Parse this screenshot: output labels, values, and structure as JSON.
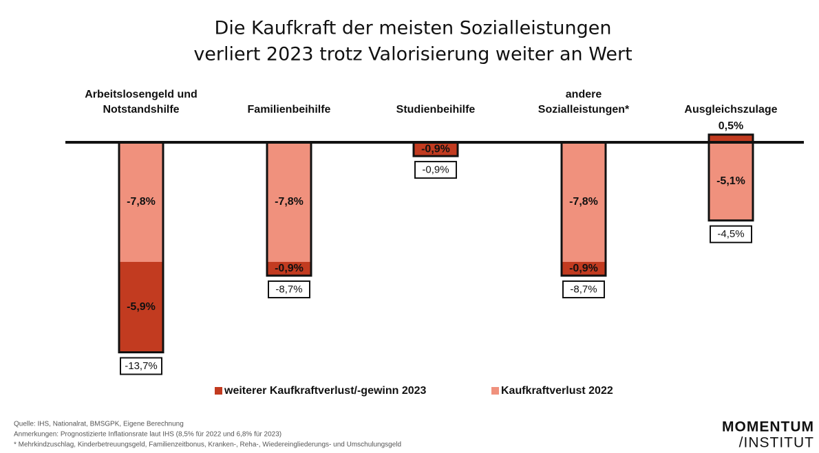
{
  "chart_data": {
    "type": "bar",
    "title": [
      "Die Kaufkraft der meisten Sozialleistungen",
      "verliert 2023 trotz Valorisierung weiter an Wert"
    ],
    "categories": [
      [
        "Arbeitslosengeld und",
        "Notstandshilfe"
      ],
      [
        "Familienbeihilfe"
      ],
      [
        "Studienbeihilfe"
      ],
      [
        "andere",
        "Sozialleistungen*"
      ],
      [
        "Ausgleichszulage"
      ]
    ],
    "stacked": true,
    "series": [
      {
        "name": "weiterer Kaufkraftverlust/-gewinn 2023",
        "color": "#c23b20",
        "values": [
          -5.9,
          -0.9,
          -0.9,
          -0.9,
          0.5
        ],
        "value_labels": [
          "-5,9%",
          "-0,9%",
          "-0,9%",
          "-0,9%",
          "0,5%"
        ]
      },
      {
        "name": "Kaufkraftverlust 2022",
        "color": "#f0917d",
        "values": [
          -7.8,
          -7.8,
          null,
          -7.8,
          -5.1
        ],
        "value_labels": [
          "-7,8%",
          "-7,8%",
          null,
          "-7,8%",
          "-5,1%"
        ]
      }
    ],
    "totals": [
      -13.7,
      -8.7,
      -0.9,
      -8.7,
      -4.5
    ],
    "total_labels": [
      "-13,7%",
      "-8,7%",
      "-0,9%",
      "-8,7%",
      "-4,5%"
    ],
    "notes": [
      "Quelle: IHS, Nationalrat, BMSGPK, Eigene Berechnung",
      "Anmerkungen: Prognostizierte Inflationsrate laut IHS (8,5% für 2022 und 6,8% für 2023)",
      "* Mehrkindzuschlag, Kinderbetreuungsgeld, Familienzeitbonus, Kranken-, Reha-, Wiedereingliederungs- und Umschulungsgeld"
    ],
    "logo": [
      "MOMENTUM",
      "/INSTITUT"
    ]
  }
}
